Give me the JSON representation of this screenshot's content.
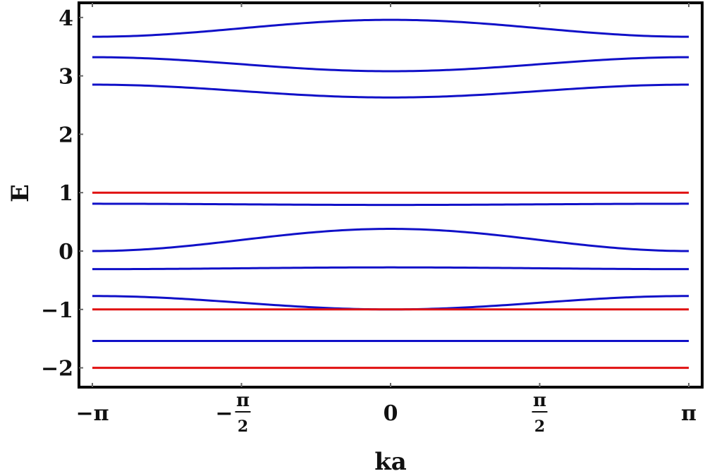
{
  "chart_data": {
    "type": "line",
    "xlabel": "ka",
    "ylabel": "E",
    "xlim": [
      -3.14159,
      3.14159
    ],
    "ylim": [
      -2.3,
      4.3
    ],
    "grid": false,
    "legend": "none",
    "x_ticks": [
      {
        "value": -3.14159,
        "label": "-π"
      },
      {
        "value": -1.5708,
        "label": "-π/2",
        "sign": "-",
        "num": "π",
        "den": "2"
      },
      {
        "value": 0,
        "label": "0"
      },
      {
        "value": 1.5708,
        "label": "π/2",
        "sign": "",
        "num": "π",
        "den": "2"
      },
      {
        "value": 3.14159,
        "label": "π"
      }
    ],
    "y_ticks": [
      {
        "value": -2,
        "label": "-2"
      },
      {
        "value": -1,
        "label": "-1"
      },
      {
        "value": 0,
        "label": "0"
      },
      {
        "value": 1,
        "label": "1"
      },
      {
        "value": 2,
        "label": "2"
      },
      {
        "value": 3,
        "label": "3"
      },
      {
        "value": 4,
        "label": "4"
      }
    ],
    "colors": {
      "dispersive": "#1010c8",
      "flat": "#e01010",
      "frame": "#000000"
    },
    "series": [
      {
        "color": "#1010c8",
        "x": [
          -3.14159,
          0,
          3.14159
        ],
        "y": [
          3.67,
          3.96,
          3.67
        ]
      },
      {
        "color": "#1010c8",
        "x": [
          -3.14159,
          0,
          3.14159
        ],
        "y": [
          3.32,
          3.08,
          3.32
        ]
      },
      {
        "color": "#1010c8",
        "x": [
          -3.14159,
          0,
          3.14159
        ],
        "y": [
          2.85,
          2.63,
          2.85
        ]
      },
      {
        "color": "#e01010",
        "x": [
          -3.14159,
          0,
          3.14159
        ],
        "y": [
          1.0,
          1.0,
          1.0
        ]
      },
      {
        "color": "#1010c8",
        "x": [
          -3.14159,
          0,
          3.14159
        ],
        "y": [
          0.81,
          0.79,
          0.81
        ]
      },
      {
        "color": "#1010c8",
        "x": [
          -3.14159,
          0,
          3.14159
        ],
        "y": [
          0.0,
          0.38,
          0.0
        ]
      },
      {
        "color": "#1010c8",
        "x": [
          -3.14159,
          0,
          3.14159
        ],
        "y": [
          -0.31,
          -0.28,
          -0.31
        ]
      },
      {
        "color": "#1010c8",
        "x": [
          -3.14159,
          0,
          3.14159
        ],
        "y": [
          -0.77,
          -1.0,
          -0.77
        ]
      },
      {
        "color": "#e01010",
        "x": [
          -3.14159,
          0,
          3.14159
        ],
        "y": [
          -1.0,
          -1.0,
          -1.0
        ]
      },
      {
        "color": "#1010c8",
        "x": [
          -3.14159,
          0,
          3.14159
        ],
        "y": [
          -1.54,
          -1.54,
          -1.54
        ]
      },
      {
        "color": "#e01010",
        "x": [
          -3.14159,
          0,
          3.14159
        ],
        "y": [
          -2.0,
          -2.0,
          -2.0
        ]
      }
    ]
  }
}
